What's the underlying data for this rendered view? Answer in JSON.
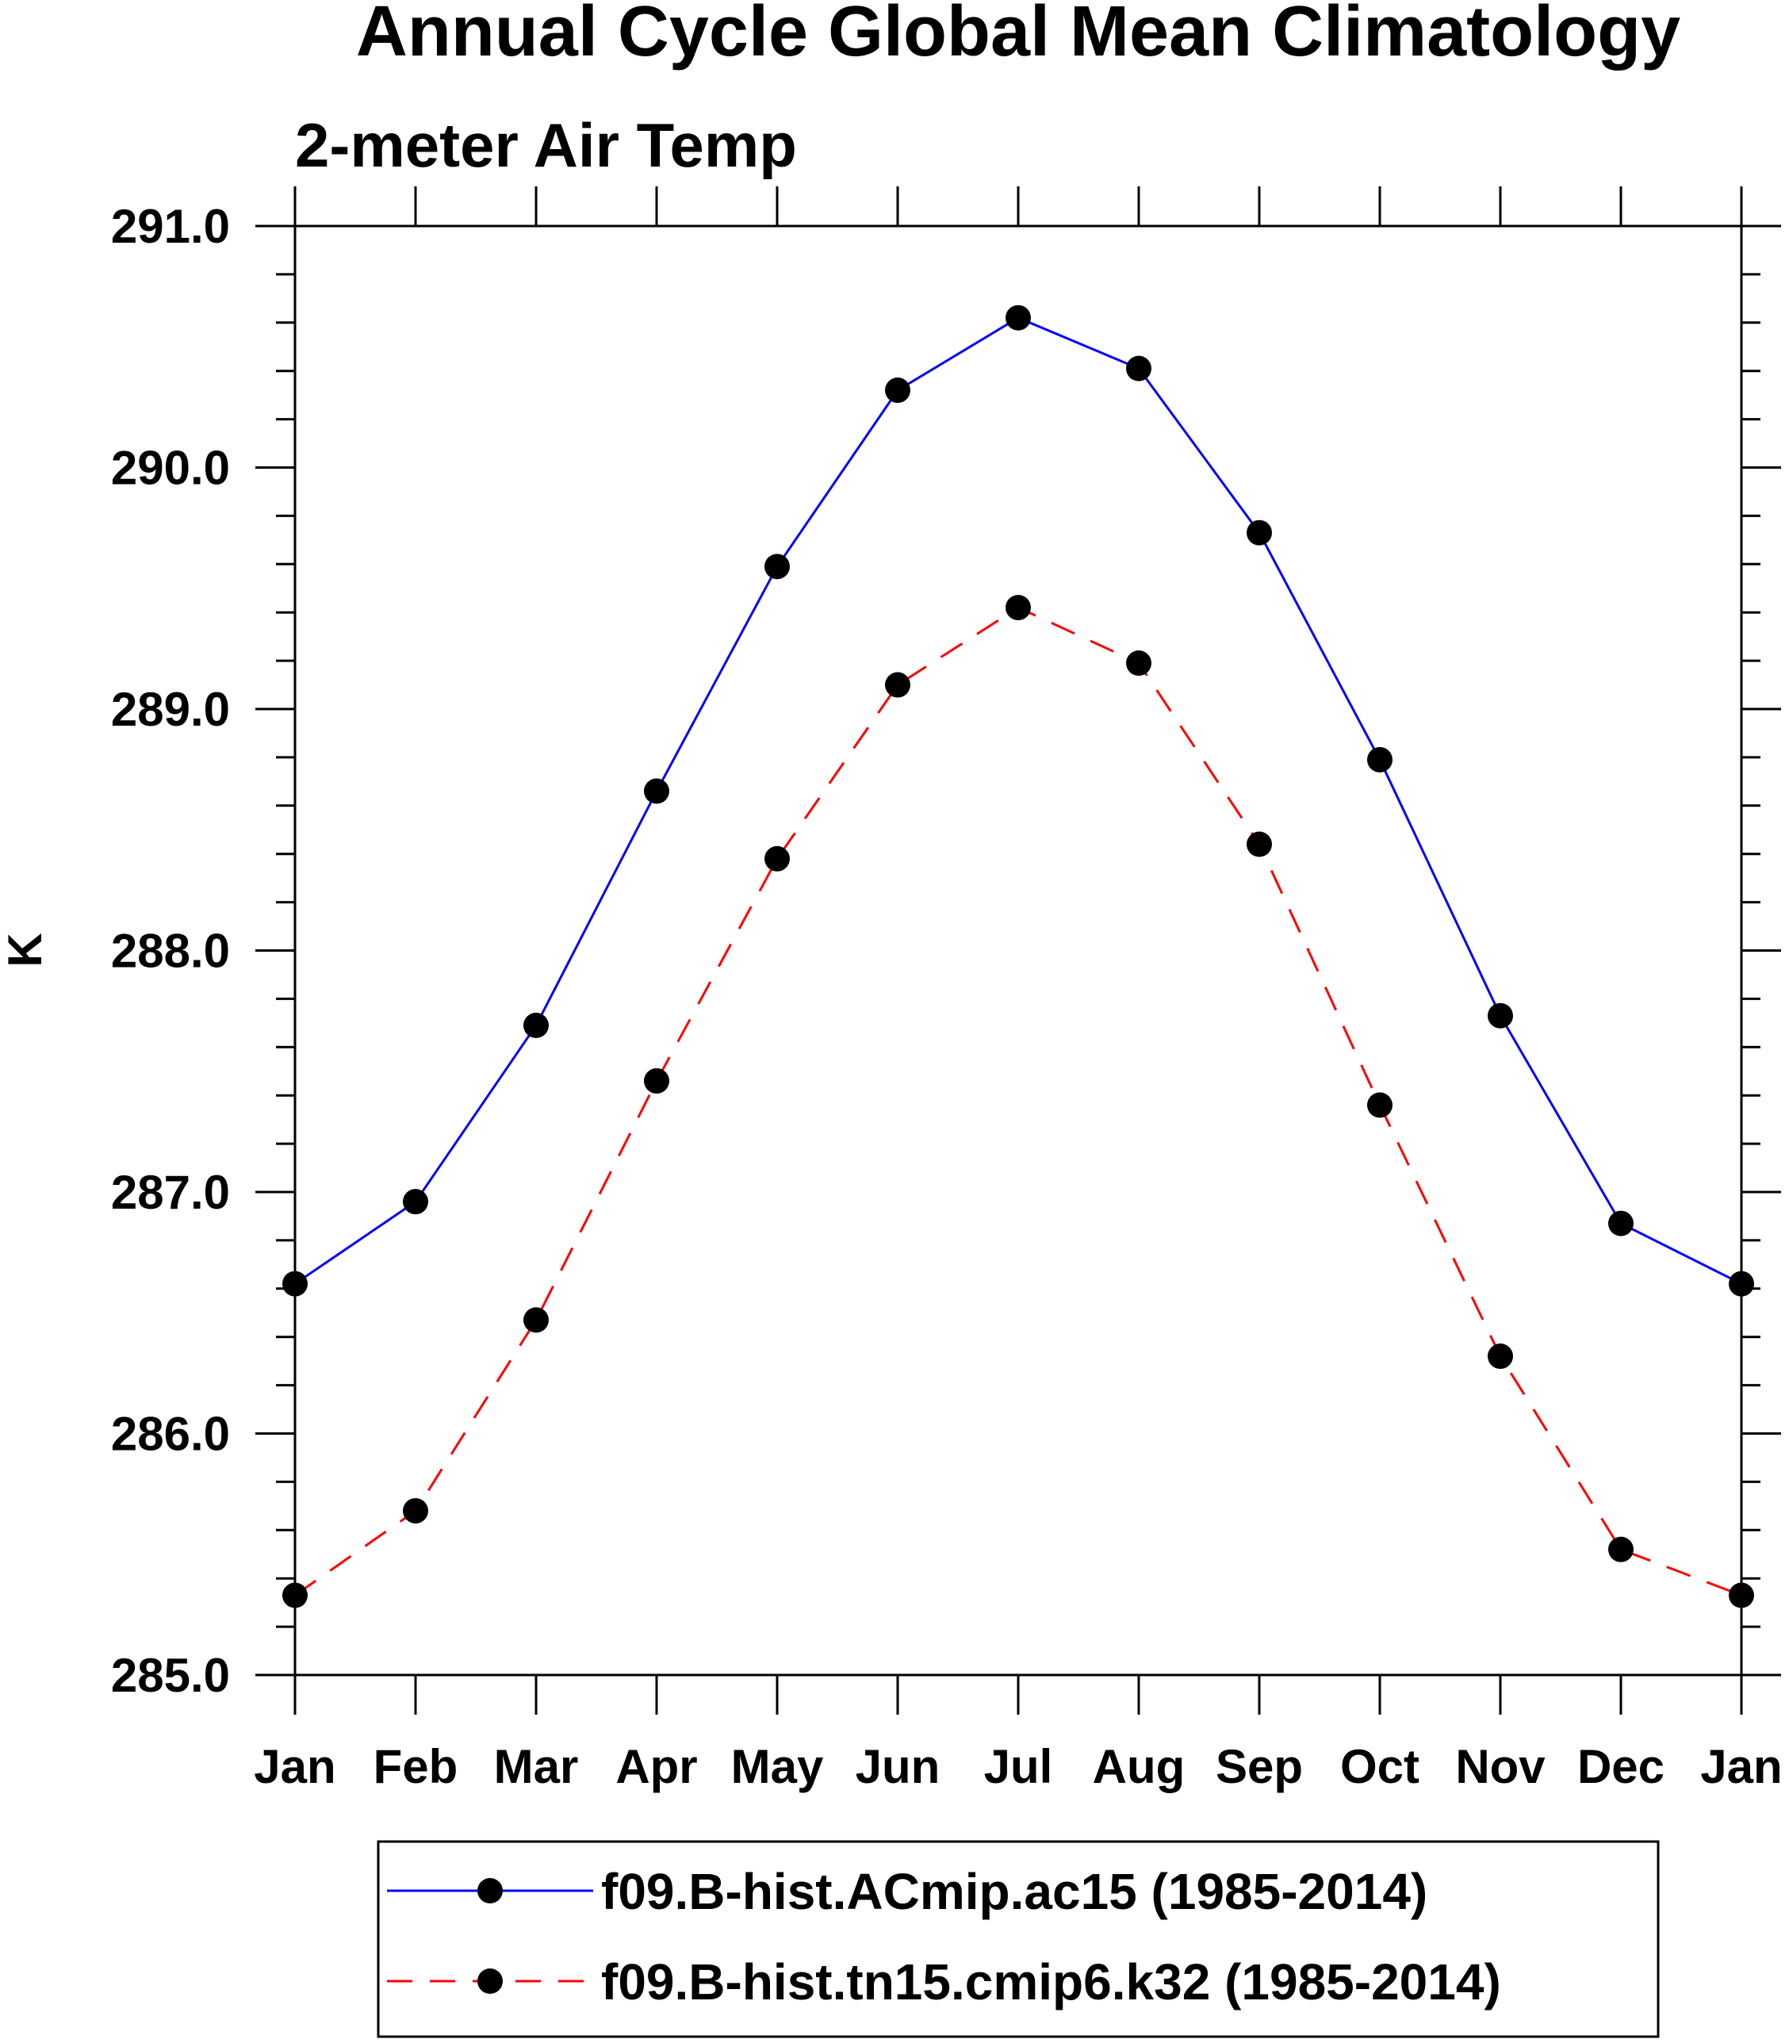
{
  "chart_data": {
    "type": "line",
    "title": "Annual Cycle Global Mean Climatology",
    "subtitle": "2-meter Air Temp",
    "xlabel": "",
    "ylabel": "K",
    "categories": [
      "Jan",
      "Feb",
      "Mar",
      "Apr",
      "May",
      "Jun",
      "Jul",
      "Aug",
      "Sep",
      "Oct",
      "Nov",
      "Dec",
      "Jan"
    ],
    "ylim": [
      285.0,
      291.0
    ],
    "yticks": [
      "285.0",
      "286.0",
      "287.0",
      "288.0",
      "289.0",
      "290.0",
      "291.0"
    ],
    "grid": false,
    "legend_position": "bottom",
    "series": [
      {
        "name": "f09.B-hist.ACmip.ac15 (1985-2014)",
        "color": "#0000ff",
        "line_style": "solid",
        "marker": "filled-circle",
        "values": [
          286.62,
          286.96,
          287.69,
          288.66,
          289.59,
          290.32,
          290.62,
          290.41,
          289.73,
          288.79,
          287.73,
          286.87,
          286.62
        ]
      },
      {
        "name": "f09.B-hist.tn15.cmip6.k32 (1985-2014)",
        "color": "#ff0000",
        "line_style": "dashed",
        "marker": "filled-circle",
        "values": [
          285.33,
          285.68,
          286.47,
          287.46,
          288.38,
          289.1,
          289.42,
          289.19,
          288.44,
          287.36,
          286.32,
          285.52,
          285.33
        ]
      }
    ]
  }
}
